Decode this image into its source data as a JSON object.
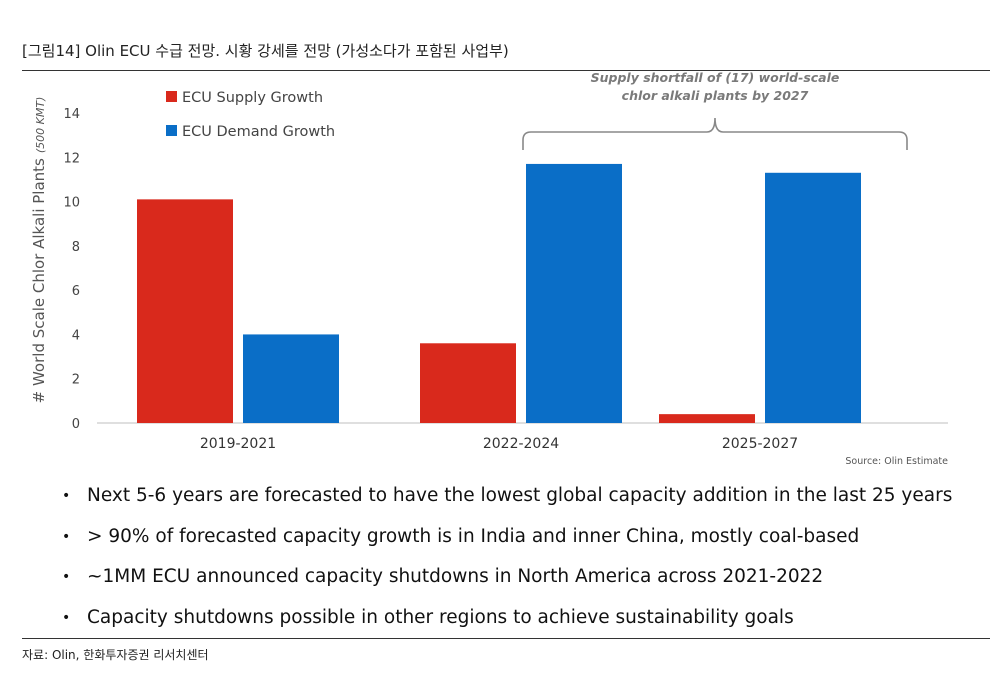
{
  "figure_title": "[그림14]  Olin ECU 수급 전망. 시황 강세를 전망 (가성소다가 포함된 사업부)",
  "figure_source": "자료: Olin, 한화투자증권 리서치센터",
  "chart_data": {
    "type": "bar",
    "categories": [
      "2019-2021",
      "2022-2024",
      "2025-2027"
    ],
    "series": [
      {
        "name": "ECU Supply Growth",
        "color": "#d9291c",
        "values": [
          10.1,
          3.6,
          0.4
        ]
      },
      {
        "name": "ECU Demand Growth",
        "color": "#0a6ec7",
        "values": [
          4.0,
          11.7,
          11.3
        ]
      }
    ],
    "ylabel": "# World Scale Chlor Alkali Plants",
    "ylabel_unit": "(500 KMT)",
    "ylim": [
      0,
      14
    ],
    "yticks": [
      "0",
      "2",
      "4",
      "6",
      "8",
      "10",
      "12",
      "14"
    ],
    "grid": false,
    "legend_position": "top-left",
    "annotation": [
      "Supply shortfall of (17) world-scale",
      "chlor alkali plants by 2027"
    ],
    "annotation_span": [
      "2022-2024",
      "2025-2027"
    ],
    "source_note": "Source: Olin Estimate"
  },
  "bullets": [
    "Next 5-6 years are forecasted to have the lowest global capacity addition in the last 25 years",
    "> 90% of forecasted capacity growth is in India and inner China, mostly coal-based",
    "~1MM ECU announced capacity shutdowns in North America across 2021-2022",
    "Capacity shutdowns possible in other regions to achieve sustainability goals"
  ],
  "bullet_symbol": "•"
}
